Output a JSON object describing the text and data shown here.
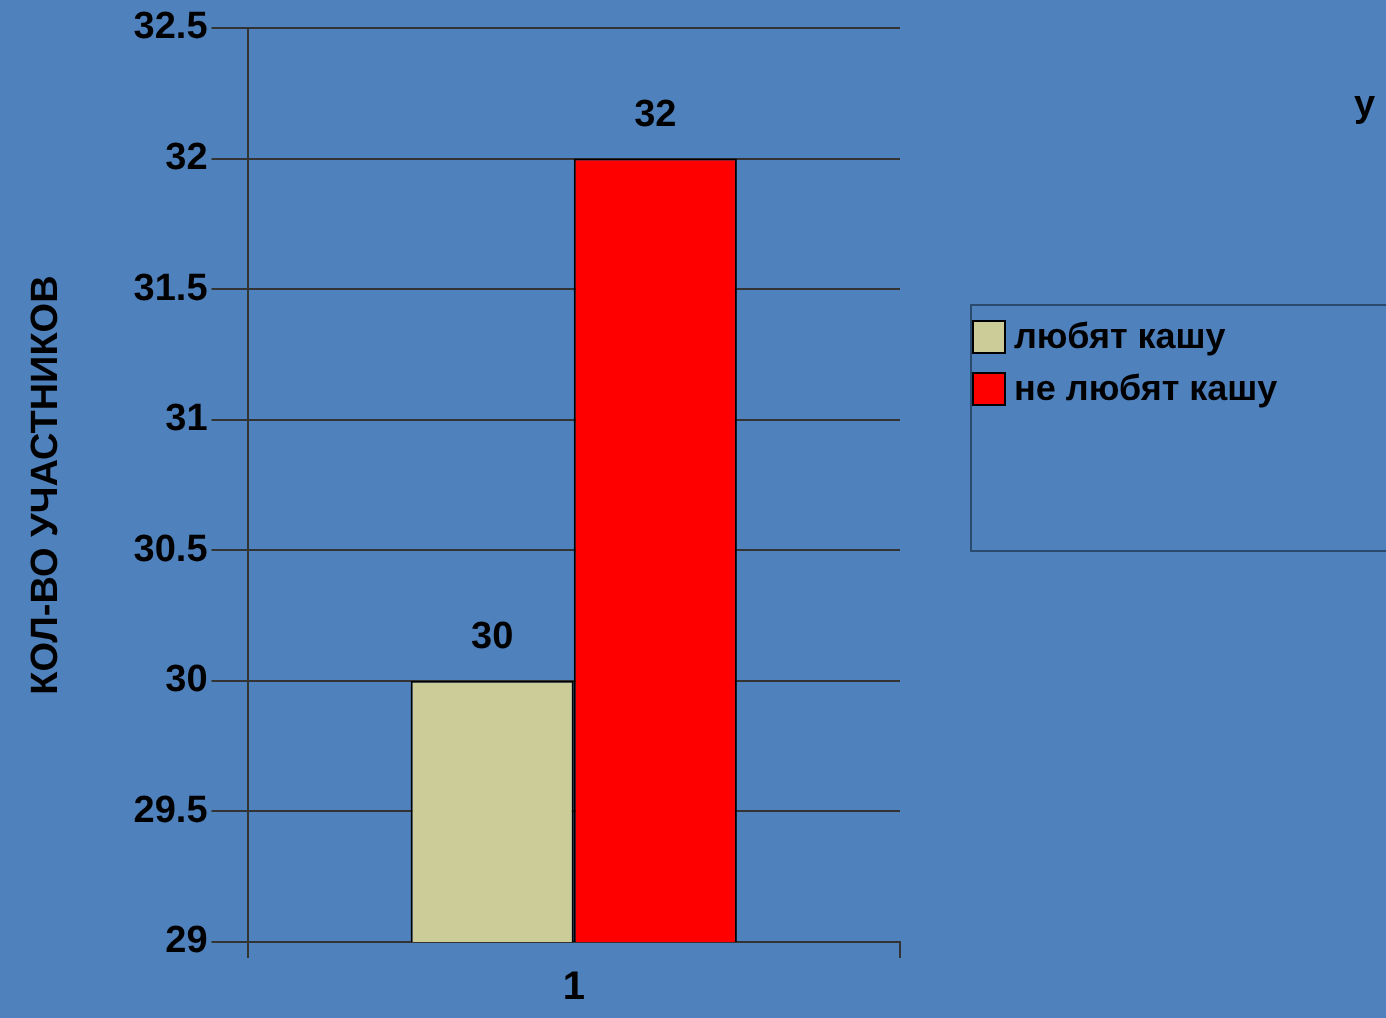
{
  "chart_data": {
    "type": "bar",
    "ylabel": "КОЛ-ВО УЧАСТНИКОВ",
    "categories": [
      "1"
    ],
    "series": [
      {
        "name": "любят кашу",
        "color": "#cccc99",
        "values": [
          30
        ]
      },
      {
        "name": "не любят кашу",
        "color": "#ff0000",
        "values": [
          32
        ]
      }
    ],
    "ylim": [
      29,
      32.5
    ],
    "yticks": [
      29,
      29.5,
      30,
      30.5,
      31,
      31.5,
      32,
      32.5
    ],
    "grid": "y",
    "legend": "right",
    "data_labels": true,
    "annotations": [
      "у"
    ]
  }
}
